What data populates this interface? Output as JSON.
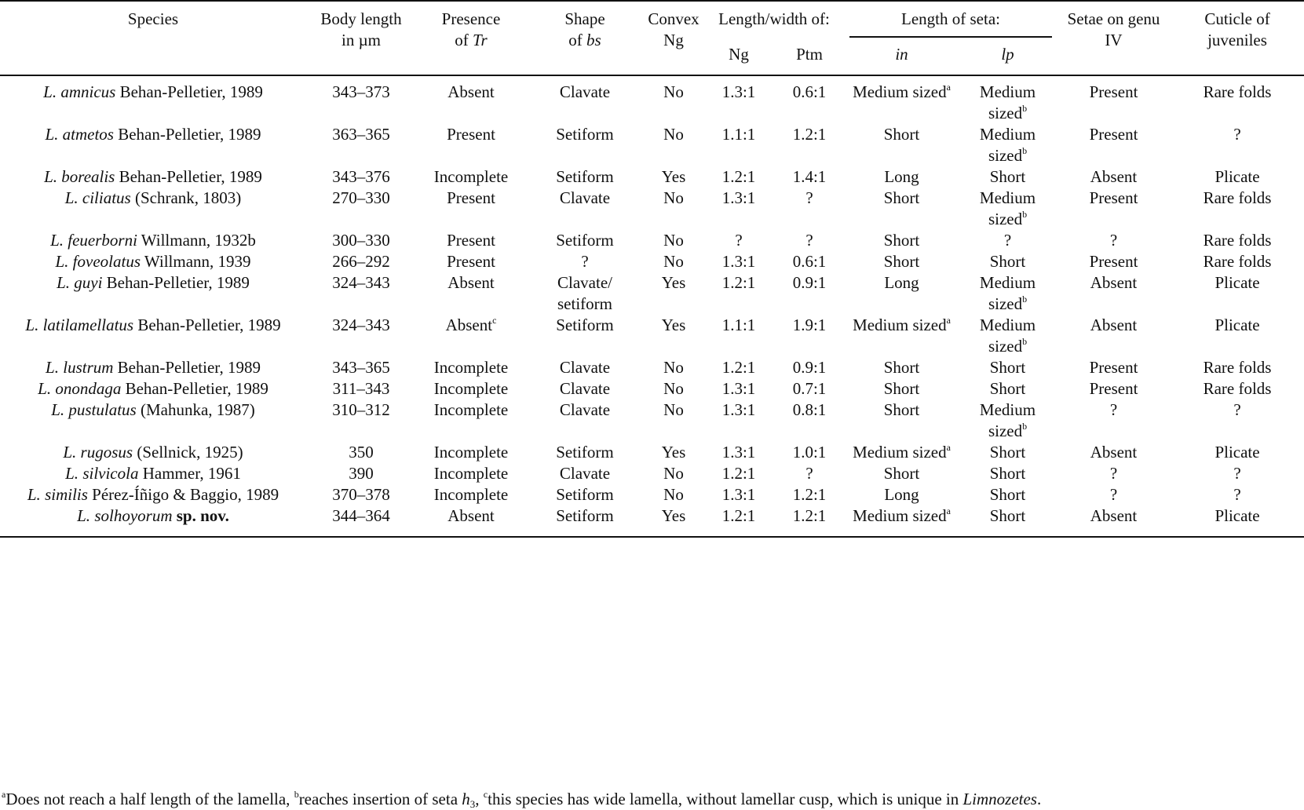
{
  "table": {
    "headers": {
      "species": "Species",
      "body_length": [
        "Body length",
        "in µm"
      ],
      "presence_tr": {
        "prefix": "Presence",
        "of": "of",
        "italic": "Tr"
      },
      "shape_bs": {
        "prefix": "Shape",
        "of": "of",
        "italic": "bs"
      },
      "convex_ng": [
        "Convex",
        "Ng"
      ],
      "length_width": "Length/width of:",
      "ng": "Ng",
      "ptm": "Ptm",
      "length_seta": "Length of seta:",
      "seta_in": "in",
      "seta_lp": "lp",
      "setae_genu": [
        "Setae on genu",
        "IV"
      ],
      "cuticle": [
        "Cuticle of",
        "juveniles"
      ]
    },
    "rows": [
      {
        "genus": "L.",
        "epithet": "amnicus",
        "author": "Behan-Pelletier, 1989",
        "nov": "",
        "body": "343–373",
        "tr": "Absent",
        "tr_sup": "",
        "bs": [
          "Clavate"
        ],
        "convex": "No",
        "ng": "1.3:1",
        "ptm": "0.6:1",
        "in": "Medium sized",
        "in_sup": "a",
        "lp": [
          "Medium",
          "sized"
        ],
        "lp_sup": "b",
        "genu": "Present",
        "cuticle": "Rare folds"
      },
      {
        "genus": "L.",
        "epithet": "atmetos",
        "author": "Behan-Pelletier, 1989",
        "nov": "",
        "body": "363–365",
        "tr": "Present",
        "tr_sup": "",
        "bs": [
          "Setiform"
        ],
        "convex": "No",
        "ng": "1.1:1",
        "ptm": "1.2:1",
        "in": "Short",
        "in_sup": "",
        "lp": [
          "Medium",
          "sized"
        ],
        "lp_sup": "b",
        "genu": "Present",
        "cuticle": "?"
      },
      {
        "genus": "L.",
        "epithet": "borealis",
        "author": "Behan-Pelletier, 1989",
        "nov": "",
        "body": "343–376",
        "tr": "Incomplete",
        "tr_sup": "",
        "bs": [
          "Setiform"
        ],
        "convex": "Yes",
        "ng": "1.2:1",
        "ptm": "1.4:1",
        "in": "Long",
        "in_sup": "",
        "lp": [
          "Short"
        ],
        "lp_sup": "",
        "genu": "Absent",
        "cuticle": "Plicate"
      },
      {
        "genus": "L.",
        "epithet": "ciliatus",
        "author": "(Schrank, 1803)",
        "nov": "",
        "body": "270–330",
        "tr": "Present",
        "tr_sup": "",
        "bs": [
          "Clavate"
        ],
        "convex": "No",
        "ng": "1.3:1",
        "ptm": "?",
        "in": "Short",
        "in_sup": "",
        "lp": [
          "Medium",
          "sized"
        ],
        "lp_sup": "b",
        "genu": "Present",
        "cuticle": "Rare folds"
      },
      {
        "genus": "L.",
        "epithet": "feuerborni",
        "author": "Willmann, 1932b",
        "nov": "",
        "body": "300–330",
        "tr": "Present",
        "tr_sup": "",
        "bs": [
          "Setiform"
        ],
        "convex": "No",
        "ng": "?",
        "ptm": "?",
        "in": "Short",
        "in_sup": "",
        "lp": [
          "?"
        ],
        "lp_sup": "",
        "genu": "?",
        "cuticle": "Rare folds"
      },
      {
        "genus": "L.",
        "epithet": "foveolatus",
        "author": "Willmann, 1939",
        "nov": "",
        "body": "266–292",
        "tr": "Present",
        "tr_sup": "",
        "bs": [
          "?"
        ],
        "convex": "No",
        "ng": "1.3:1",
        "ptm": "0.6:1",
        "in": "Short",
        "in_sup": "",
        "lp": [
          "Short"
        ],
        "lp_sup": "",
        "genu": "Present",
        "cuticle": "Rare folds"
      },
      {
        "genus": "L.",
        "epithet": "guyi",
        "author": "Behan-Pelletier, 1989",
        "nov": "",
        "body": "324–343",
        "tr": "Absent",
        "tr_sup": "",
        "bs": [
          "Clavate/",
          "setiform"
        ],
        "convex": "Yes",
        "ng": "1.2:1",
        "ptm": "0.9:1",
        "in": "Long",
        "in_sup": "",
        "lp": [
          "Medium",
          "sized"
        ],
        "lp_sup": "b",
        "genu": "Absent",
        "cuticle": "Plicate"
      },
      {
        "genus": "L.",
        "epithet": "latilamellatus",
        "author": "Behan-Pelletier, 1989",
        "nov": "",
        "body": "324–343",
        "tr": "Absent",
        "tr_sup": "c",
        "bs": [
          "Setiform"
        ],
        "convex": "Yes",
        "ng": "1.1:1",
        "ptm": "1.9:1",
        "in": "Medium sized",
        "in_sup": "a",
        "lp": [
          "Medium",
          "sized"
        ],
        "lp_sup": "b",
        "genu": "Absent",
        "cuticle": "Plicate"
      },
      {
        "genus": "L.",
        "epithet": "lustrum",
        "author": "Behan-Pelletier, 1989",
        "nov": "",
        "body": "343–365",
        "tr": "Incomplete",
        "tr_sup": "",
        "bs": [
          "Clavate"
        ],
        "convex": "No",
        "ng": "1.2:1",
        "ptm": "0.9:1",
        "in": "Short",
        "in_sup": "",
        "lp": [
          "Short"
        ],
        "lp_sup": "",
        "genu": "Present",
        "cuticle": "Rare folds"
      },
      {
        "genus": "L.",
        "epithet": "onondaga",
        "author": "Behan-Pelletier, 1989",
        "nov": "",
        "body": "311–343",
        "tr": "Incomplete",
        "tr_sup": "",
        "bs": [
          "Clavate"
        ],
        "convex": "No",
        "ng": "1.3:1",
        "ptm": "0.7:1",
        "in": "Short",
        "in_sup": "",
        "lp": [
          "Short"
        ],
        "lp_sup": "",
        "genu": "Present",
        "cuticle": "Rare folds"
      },
      {
        "genus": "L.",
        "epithet": "pustulatus",
        "author": "(Mahunka, 1987)",
        "nov": "",
        "body": "310–312",
        "tr": "Incomplete",
        "tr_sup": "",
        "bs": [
          "Clavate"
        ],
        "convex": "No",
        "ng": "1.3:1",
        "ptm": "0.8:1",
        "in": "Short",
        "in_sup": "",
        "lp": [
          "Medium",
          "sized"
        ],
        "lp_sup": "b",
        "genu": "?",
        "cuticle": "?"
      },
      {
        "genus": "L.",
        "epithet": "rugosus",
        "author": "(Sellnick, 1925)",
        "nov": "",
        "body": "350",
        "tr": "Incomplete",
        "tr_sup": "",
        "bs": [
          "Setiform"
        ],
        "convex": "Yes",
        "ng": "1.3:1",
        "ptm": "1.0:1",
        "in": "Medium sized",
        "in_sup": "a",
        "lp": [
          "Short"
        ],
        "lp_sup": "",
        "genu": "Absent",
        "cuticle": "Plicate"
      },
      {
        "genus": "L.",
        "epithet": "silvicola",
        "author": "Hammer, 1961",
        "nov": "",
        "body": "390",
        "tr": "Incomplete",
        "tr_sup": "",
        "bs": [
          "Clavate"
        ],
        "convex": "No",
        "ng": "1.2:1",
        "ptm": "?",
        "in": "Short",
        "in_sup": "",
        "lp": [
          "Short"
        ],
        "lp_sup": "",
        "genu": "?",
        "cuticle": "?"
      },
      {
        "genus": "L.",
        "epithet": "similis",
        "author": "Pérez-Íñigo & Baggio, 1989",
        "nov": "",
        "body": "370–378",
        "tr": "Incomplete",
        "tr_sup": "",
        "bs": [
          "Setiform"
        ],
        "convex": "No",
        "ng": "1.3:1",
        "ptm": "1.2:1",
        "in": "Long",
        "in_sup": "",
        "lp": [
          "Short"
        ],
        "lp_sup": "",
        "genu": "?",
        "cuticle": "?"
      },
      {
        "genus": "L.",
        "epithet": "solhoyorum",
        "author": "",
        "nov": "sp. nov.",
        "body": "344–364",
        "tr": "Absent",
        "tr_sup": "",
        "bs": [
          "Setiform"
        ],
        "convex": "Yes",
        "ng": "1.2:1",
        "ptm": "1.2:1",
        "in": "Medium sized",
        "in_sup": "a",
        "lp": [
          "Short"
        ],
        "lp_sup": "",
        "genu": "Absent",
        "cuticle": "Plicate"
      }
    ]
  },
  "footnote": {
    "a_mark": "a",
    "a_text": "Does not reach a half length of the lamella, ",
    "b_mark": "b",
    "b_text": "reaches insertion of seta ",
    "b_seta": "h",
    "b_seta_sub": "3",
    "sep": ", ",
    "c_mark": "c",
    "c_text": "this species has wide lamella, without lamellar cusp, which is unique in ",
    "c_genus": "Limnozetes",
    "end": "."
  }
}
